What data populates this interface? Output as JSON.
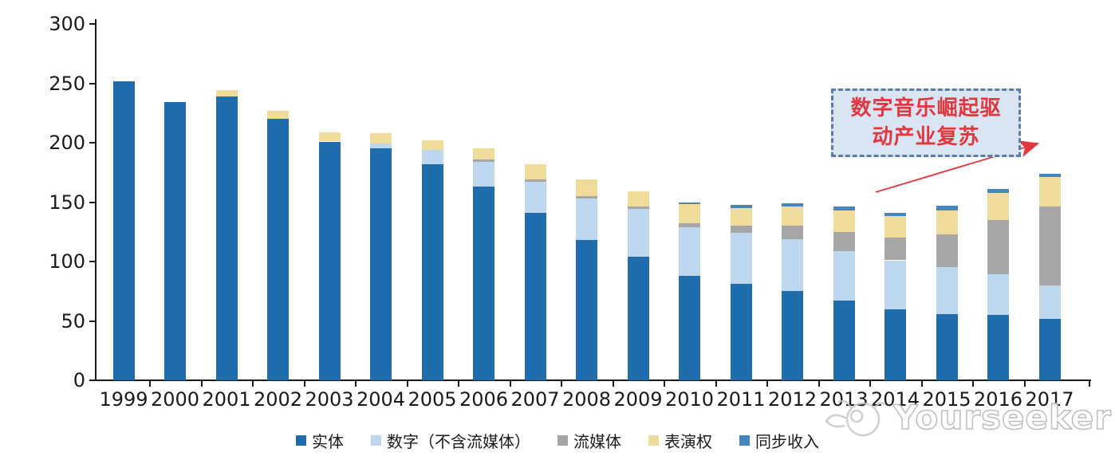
{
  "chart_data": {
    "type": "bar",
    "stacked": true,
    "categories": [
      "1999",
      "2000",
      "2001",
      "2002",
      "2003",
      "2004",
      "2005",
      "2006",
      "2007",
      "2008",
      "2009",
      "2010",
      "2011",
      "2012",
      "2013",
      "2014",
      "2015",
      "2016",
      "2017"
    ],
    "series": [
      {
        "name": "实体",
        "color": "#1F6DAD",
        "values": [
          252,
          234,
          239,
          220,
          201,
          195,
          182,
          163,
          141,
          118,
          104,
          88,
          81,
          75,
          67,
          60,
          56,
          55,
          52
        ]
      },
      {
        "name": "数字（不含流媒体）",
        "color": "#BDD7EE",
        "values": [
          0,
          0,
          0,
          0,
          0,
          4,
          12,
          21,
          26,
          35,
          40,
          41,
          43,
          44,
          42,
          41,
          39,
          34,
          28
        ]
      },
      {
        "name": "流媒体",
        "color": "#A6A6A6",
        "values": [
          0,
          0,
          0,
          0,
          0,
          0,
          0,
          2,
          2,
          2,
          2,
          3,
          6,
          11,
          16,
          19,
          28,
          46,
          66
        ]
      },
      {
        "name": "表演权",
        "color": "#EFDB9A",
        "values": [
          0,
          0,
          5,
          7,
          8,
          9,
          8,
          9,
          13,
          14,
          13,
          16,
          15,
          16,
          18,
          18,
          20,
          23,
          25
        ]
      },
      {
        "name": "同步收入",
        "color": "#4486BF",
        "values": [
          0,
          0,
          0,
          0,
          0,
          0,
          0,
          0,
          0,
          0,
          0,
          2,
          2.5,
          3,
          3,
          3,
          4,
          3,
          2.5
        ]
      }
    ],
    "title": "",
    "xlabel": "",
    "ylabel": "",
    "ylim": [
      0,
      300
    ],
    "yticks": [
      0,
      50,
      100,
      150,
      200,
      250,
      300
    ],
    "grid": false,
    "legend_position": "bottom"
  },
  "annotation": {
    "line1": "数字音乐崛起驱",
    "line2": "动产业复苏",
    "text_color": "#E0383E",
    "box_fill": "#D9E5F3",
    "box_border": "#5C7CA8",
    "arrow_color": "#E0383E"
  },
  "watermark": {
    "text": "Yourseeker",
    "color": "#B9B9B9"
  }
}
